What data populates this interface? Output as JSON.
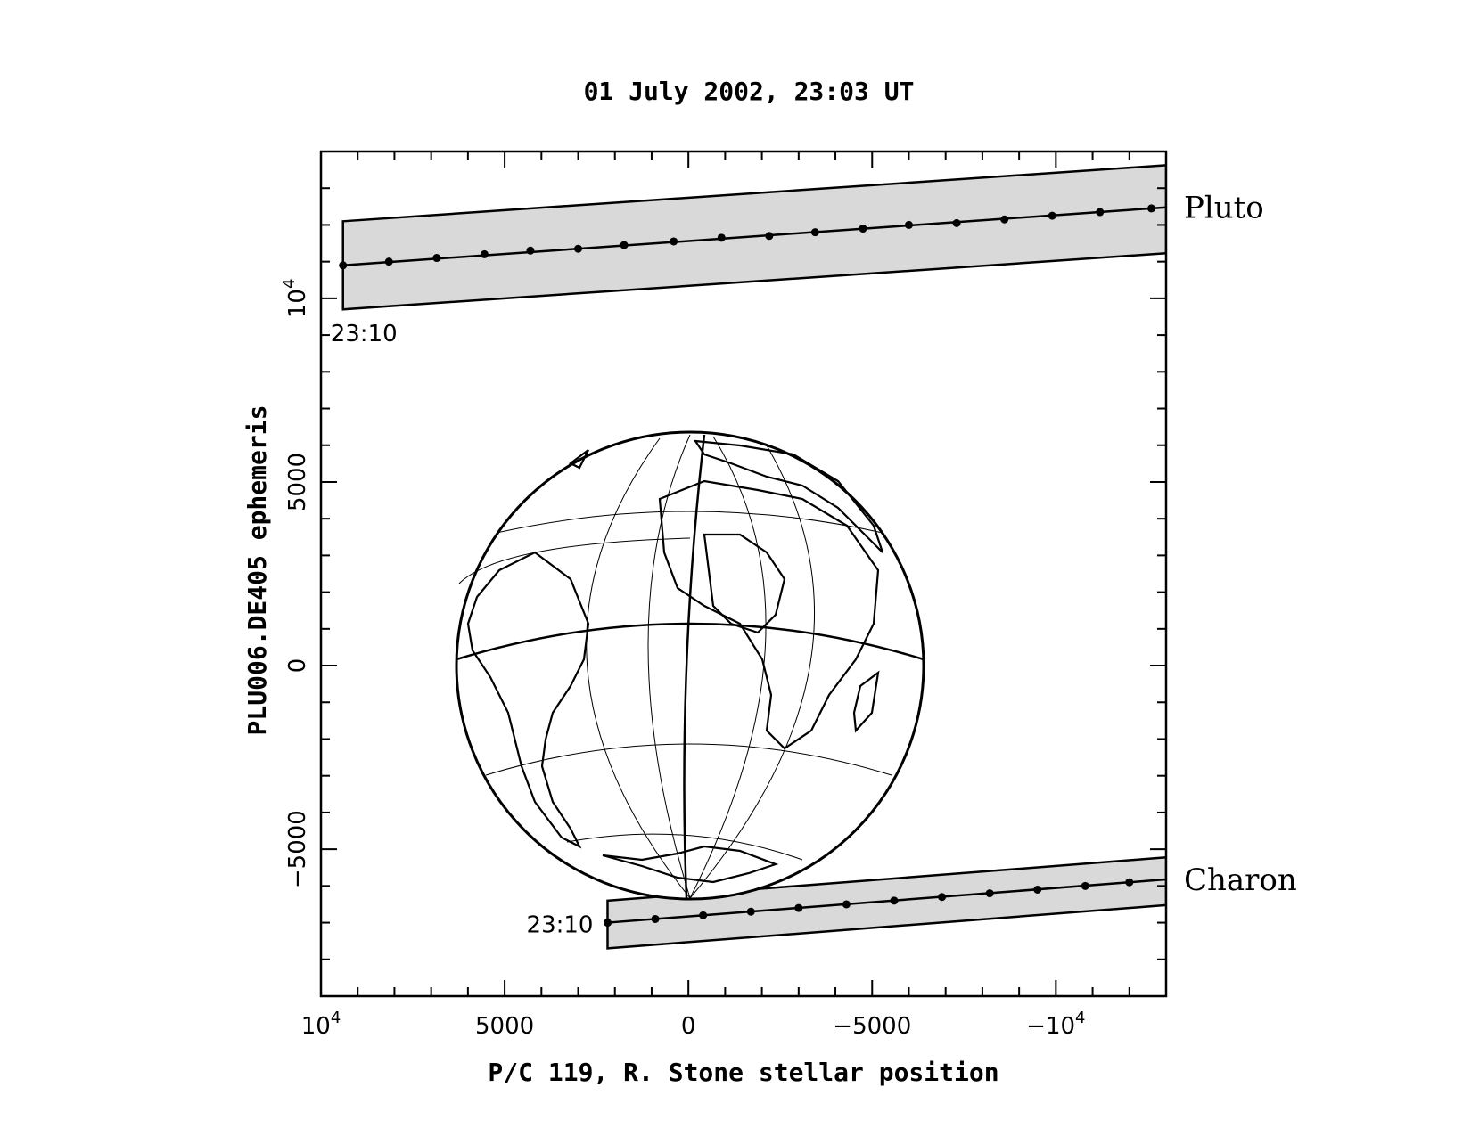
{
  "chart_data": {
    "type": "scatter",
    "title": "01 July 2002, 23:03 UT",
    "xlabel": "P/C 119, R. Stone stellar position",
    "ylabel": "PLU006.DE405 ephemeris",
    "xlim": [
      10000,
      -13000
    ],
    "ylim": [
      -9000,
      14000
    ],
    "x_ticks": [
      {
        "value": 10000,
        "label": "10",
        "exp": "4"
      },
      {
        "value": 5000,
        "label": "5000",
        "exp": ""
      },
      {
        "value": 0,
        "label": "0",
        "exp": ""
      },
      {
        "value": -5000,
        "label": "−5000",
        "exp": ""
      },
      {
        "value": -10000,
        "label": "−10",
        "exp": "4"
      }
    ],
    "y_ticks": [
      {
        "value": 10000,
        "label": "10",
        "exp": "4"
      },
      {
        "value": 5000,
        "label": "5000",
        "exp": ""
      },
      {
        "value": 0,
        "label": "0",
        "exp": ""
      },
      {
        "value": -5000,
        "label": "−5000",
        "exp": ""
      }
    ],
    "earth": {
      "center": [
        0,
        0
      ],
      "radius": 6378
    },
    "series": [
      {
        "name": "Pluto",
        "start_label": "23:10",
        "x": [
          9400,
          8150,
          6850,
          5550,
          4300,
          3000,
          1750,
          400,
          -900,
          -2200,
          -3450,
          -4750,
          -6000,
          -7300,
          -8600,
          -9900,
          -11200,
          -12600
        ],
        "y": [
          10900,
          11000,
          11100,
          11200,
          11300,
          11350,
          11450,
          11550,
          11650,
          11700,
          11800,
          11900,
          12000,
          12050,
          12150,
          12250,
          12350,
          12450
        ],
        "band_upper": [
          12100,
          13600
        ],
        "band_lower": [
          9700,
          11200
        ]
      },
      {
        "name": "Charon",
        "start_label": "23:10",
        "x": [
          2200,
          900,
          -400,
          -1700,
          -3000,
          -4300,
          -5600,
          -6900,
          -8200,
          -9500,
          -10800,
          -12000
        ],
        "y": [
          -7000,
          -6900,
          -6800,
          -6700,
          -6600,
          -6500,
          -6400,
          -6300,
          -6200,
          -6100,
          -6000,
          -5900
        ],
        "band_upper": [
          -6400,
          -5300
        ],
        "band_lower": [
          -7700,
          -6600
        ]
      }
    ]
  }
}
